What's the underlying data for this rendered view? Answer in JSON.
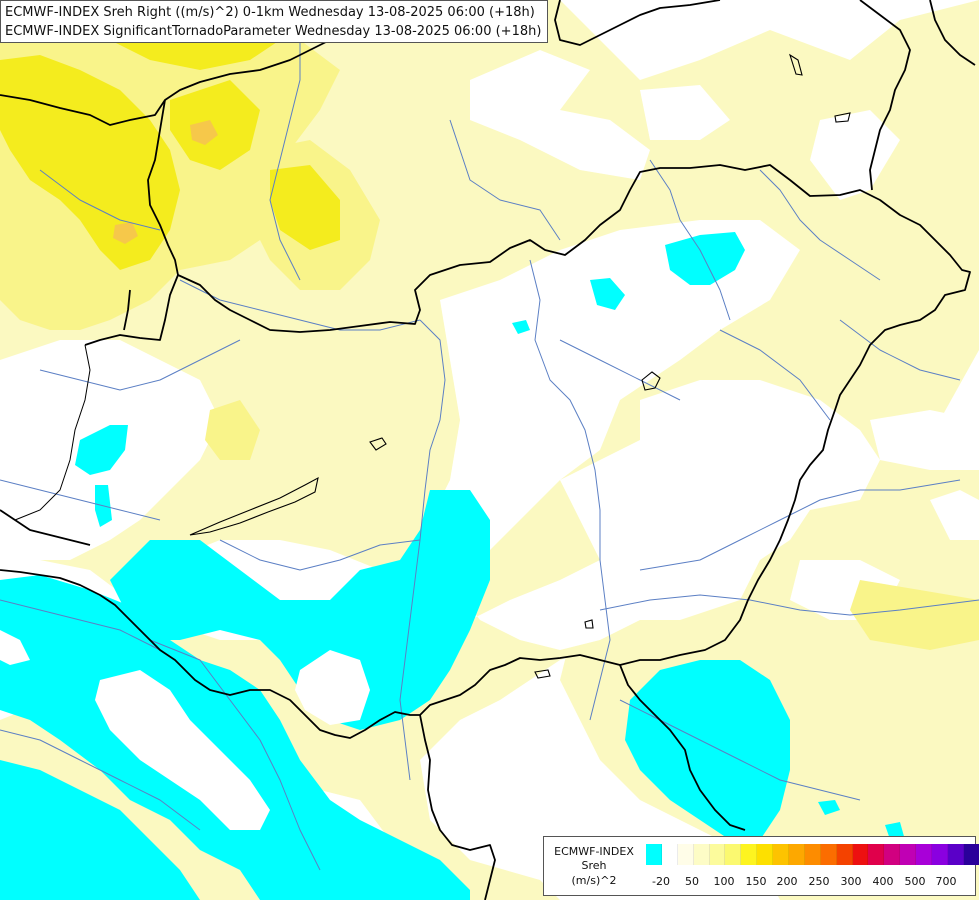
{
  "header": {
    "line1": "ECMWF-INDEX Sreh Right ((m/s)^2) 0-1km Wednesday 13-08-2025 06:00 (+18h)",
    "line2": "ECMWF-INDEX SignificantTornadoParameter Wednesday 13-08-2025 06:00 (+18h)"
  },
  "legend": {
    "source": "ECMWF-INDEX",
    "variable": "Sreh",
    "unit": "(m/s)^2",
    "tick_labels": [
      "-20",
      "50",
      "100",
      "150",
      "200",
      "250",
      "300",
      "400",
      "500",
      "700"
    ],
    "colors": [
      "#00ffff",
      "#ffffff",
      "#fffde8",
      "#fdfcc6",
      "#fcfb9c",
      "#fbf970",
      "#fdf420",
      "#fde000",
      "#fdc300",
      "#fda800",
      "#fd8c00",
      "#fb6d00",
      "#f44200",
      "#ed1010",
      "#e0004b",
      "#d10080",
      "#c000b4",
      "#a800d8",
      "#8a00e0",
      "#5a00c8",
      "#2a009a"
    ]
  },
  "map": {
    "colors": {
      "background": "#ffffff",
      "low_cape": "#00ffff",
      "pale_yellow": "#fbf9c1",
      "light_yellow": "#f9f48a",
      "yellow": "#f4f000",
      "orange_yellow": "#f7d64a",
      "border": "#000000",
      "river": "#5b7fc4"
    }
  }
}
